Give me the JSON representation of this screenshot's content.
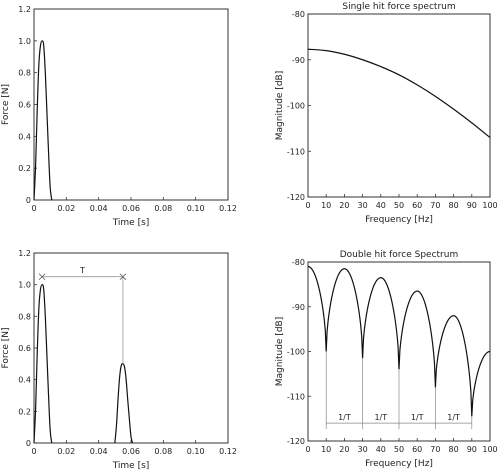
{
  "chart_data": [
    {
      "type": "line",
      "title": "",
      "xlabel": "Time [s]",
      "ylabel": "Force [N]",
      "xlim": [
        0,
        0.12
      ],
      "ylim": [
        0,
        1.2
      ],
      "xticks": [
        "0",
        "0.02",
        "0.04",
        "0.06",
        "0.08",
        "0.10",
        "0.12"
      ],
      "yticks": [
        "0",
        "0.2",
        "0.4",
        "0.6",
        "0.8",
        "1.0",
        "1.2"
      ],
      "series": [
        {
          "x": [
            0,
            0.001,
            0.002,
            0.003,
            0.004,
            0.005,
            0.006,
            0.007,
            0.008,
            0.009,
            0.01,
            0.011
          ],
          "y": [
            0,
            0.22,
            0.57,
            0.85,
            0.97,
            1.0,
            0.97,
            0.8,
            0.55,
            0.3,
            0.08,
            0
          ]
        }
      ]
    },
    {
      "type": "line",
      "title": "Single hit force spectrum",
      "xlabel": "Frequency [Hz]",
      "ylabel": "Magnitude [dB]",
      "xlim": [
        0,
        100
      ],
      "ylim": [
        -120,
        -80
      ],
      "xticks": [
        "0",
        "10",
        "20",
        "30",
        "40",
        "50",
        "60",
        "70",
        "80",
        "90",
        "100"
      ],
      "yticks": [
        "-80",
        "-90",
        "-100",
        "-110",
        "-120"
      ],
      "series": [
        {
          "x": [
            0,
            10,
            20,
            30,
            40,
            50,
            60,
            70,
            80,
            90,
            100
          ],
          "y": [
            -87.7,
            -88.0,
            -88.8,
            -90.0,
            -91.5,
            -93.3,
            -95.5,
            -98.0,
            -100.8,
            -103.8,
            -107.0
          ]
        }
      ]
    },
    {
      "type": "line",
      "title": "",
      "xlabel": "Time [s]",
      "ylabel": "Force [N]",
      "xlim": [
        0,
        0.12
      ],
      "ylim": [
        0,
        1.2
      ],
      "xticks": [
        "0",
        "0.02",
        "0.04",
        "0.06",
        "0.08",
        "0.10",
        "0.12"
      ],
      "yticks": [
        "0",
        "0.2",
        "0.4",
        "0.6",
        "0.8",
        "1.0",
        "1.2"
      ],
      "annotation": "T",
      "series": [
        {
          "x": [
            0,
            0.001,
            0.002,
            0.003,
            0.004,
            0.005,
            0.006,
            0.007,
            0.008,
            0.009,
            0.01,
            0.011
          ],
          "y": [
            0,
            0.22,
            0.57,
            0.85,
            0.97,
            1.0,
            0.97,
            0.8,
            0.55,
            0.3,
            0.08,
            0
          ]
        },
        {
          "x": [
            0.05,
            0.051,
            0.052,
            0.053,
            0.054,
            0.055,
            0.056,
            0.057,
            0.058,
            0.059,
            0.06,
            0.061
          ],
          "y": [
            0,
            0.11,
            0.28,
            0.42,
            0.49,
            0.5,
            0.48,
            0.4,
            0.27,
            0.15,
            0.04,
            0
          ]
        }
      ]
    },
    {
      "type": "line",
      "title": "Double hit force Spectrum",
      "xlabel": "Frequency [Hz]",
      "ylabel": "Magnitude [dB]",
      "xlim": [
        0,
        100
      ],
      "ylim": [
        -120,
        -80
      ],
      "xticks": [
        "0",
        "10",
        "20",
        "30",
        "40",
        "50",
        "60",
        "70",
        "80",
        "90",
        "100"
      ],
      "yticks": [
        "-80",
        "-90",
        "-100",
        "-110",
        "-120"
      ],
      "period_labels": [
        "1/T",
        "1/T",
        "1/T",
        "1/T"
      ],
      "minima_hz": [
        10,
        30,
        50,
        70,
        90
      ],
      "maxima": [
        {
          "x": 0,
          "y": -81.0
        },
        {
          "x": 20,
          "y": -81.5
        },
        {
          "x": 40,
          "y": -83.5
        },
        {
          "x": 60,
          "y": -86.5
        },
        {
          "x": 80,
          "y": -92.0
        },
        {
          "x": 100,
          "y": -100.0
        }
      ],
      "minima": [
        {
          "x": 10,
          "y": -100.0
        },
        {
          "x": 30,
          "y": -101.5
        },
        {
          "x": 50,
          "y": -104.0
        },
        {
          "x": 70,
          "y": -108.0
        },
        {
          "x": 90,
          "y": -114.5
        }
      ]
    }
  ]
}
